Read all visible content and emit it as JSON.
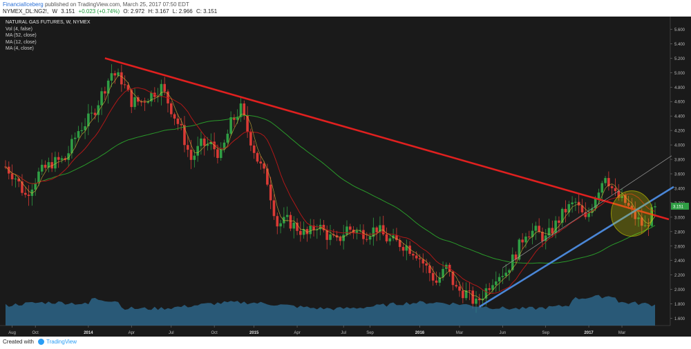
{
  "header": {
    "author": "FinancialIceberg",
    "published": "published on TradingView.com, March 25, 2017 07:50 EDT",
    "symbol": "NYMEX_DL:NG2!,",
    "interval": "W",
    "last": "3.151",
    "change": "+0.023 (+0.74%)",
    "open": "O: 2.972",
    "high": "H: 3.167",
    "low": "L: 2.966",
    "close": "C: 3.151"
  },
  "legend": {
    "title": "NATURAL GAS FUTURES, W, NYMEX",
    "items": [
      "Vol (4, false)",
      "MA (52, close)",
      "MA (12, close)",
      "MA (4, close)"
    ]
  },
  "footer": {
    "created": "Created with",
    "brand": "TradingView"
  },
  "colors": {
    "background": "#1a1a1a",
    "up": "#2f9e44",
    "down": "#d93a35",
    "ma52": "#2a9a2a",
    "ma12": "#b01818",
    "ma4": "#d9b73a",
    "trend_down": "#e0201f",
    "trend_up": "#4a86d6",
    "channel": "#9a9a9a",
    "volume": "#2f6f97",
    "highlight": "#d4d400",
    "price_tag": "#2f9e44"
  },
  "chart_data": {
    "type": "candlestick",
    "title": "NATURAL GAS FUTURES, W, NYMEX",
    "ylim": [
      1.5,
      5.7
    ],
    "y_ticks": [
      "5.600",
      "5.400",
      "5.200",
      "5.000",
      "4.800",
      "4.600",
      "4.400",
      "4.200",
      "4.000",
      "3.800",
      "3.600",
      "3.400",
      "3.200",
      "3.000",
      "2.800",
      "2.600",
      "2.400",
      "2.200",
      "2.000",
      "1.800",
      "1.600"
    ],
    "x_labels": [
      "Aug",
      "Oct",
      "2014",
      "Apr",
      "Jul",
      "Oct",
      "2015",
      "Apr",
      "Jul",
      "Sep",
      "2016",
      "Mar",
      "Jun",
      "Sep",
      "2017",
      "Mar"
    ],
    "last_price_label": "3.151",
    "last_price": 3.151,
    "anchors": [
      [
        0,
        3.7
      ],
      [
        3,
        3.55
      ],
      [
        6,
        3.3
      ],
      [
        10,
        3.6
      ],
      [
        14,
        3.75
      ],
      [
        18,
        3.8
      ],
      [
        22,
        4.2
      ],
      [
        26,
        4.4
      ],
      [
        29,
        4.7
      ],
      [
        32,
        5.0
      ],
      [
        35,
        4.9
      ],
      [
        38,
        4.6
      ],
      [
        41,
        4.6
      ],
      [
        44,
        4.7
      ],
      [
        47,
        4.8
      ],
      [
        50,
        4.5
      ],
      [
        53,
        4.2
      ],
      [
        56,
        3.8
      ],
      [
        59,
        4.0
      ],
      [
        62,
        4.0
      ],
      [
        65,
        3.85
      ],
      [
        68,
        4.3
      ],
      [
        71,
        4.5
      ],
      [
        73,
        4.2
      ],
      [
        76,
        3.8
      ],
      [
        79,
        3.5
      ],
      [
        82,
        2.9
      ],
      [
        85,
        2.95
      ],
      [
        88,
        2.85
      ],
      [
        91,
        2.75
      ],
      [
        94,
        2.9
      ],
      [
        97,
        2.75
      ],
      [
        100,
        2.65
      ],
      [
        103,
        2.85
      ],
      [
        106,
        2.8
      ],
      [
        109,
        2.78
      ],
      [
        112,
        2.85
      ],
      [
        115,
        2.7
      ],
      [
        118,
        2.65
      ],
      [
        121,
        2.6
      ],
      [
        124,
        2.5
      ],
      [
        127,
        2.3
      ],
      [
        130,
        2.1
      ],
      [
        133,
        2.3
      ],
      [
        136,
        2.0
      ],
      [
        139,
        1.95
      ],
      [
        142,
        1.8
      ],
      [
        145,
        2.0
      ],
      [
        148,
        2.2
      ],
      [
        151,
        2.25
      ],
      [
        154,
        2.5
      ],
      [
        157,
        2.8
      ],
      [
        160,
        2.8
      ],
      [
        163,
        2.7
      ],
      [
        166,
        2.9
      ],
      [
        169,
        3.1
      ],
      [
        172,
        3.2
      ],
      [
        175,
        2.95
      ],
      [
        178,
        3.3
      ],
      [
        181,
        3.6
      ],
      [
        184,
        3.3
      ],
      [
        187,
        3.2
      ],
      [
        190,
        3.0
      ],
      [
        193,
        2.85
      ],
      [
        196,
        3.15
      ]
    ],
    "volume_relative": "highest near early 2014 and late 2016",
    "trendlines": [
      {
        "name": "resistance",
        "from": {
          "date": "2014-02",
          "price": 5.2
        },
        "to": {
          "date": "2017-03",
          "price": 3.0
        }
      },
      {
        "name": "support",
        "from": {
          "date": "2016-03",
          "price": 1.76
        },
        "to": {
          "date": "2017-03",
          "price": 3.4
        }
      }
    ]
  }
}
